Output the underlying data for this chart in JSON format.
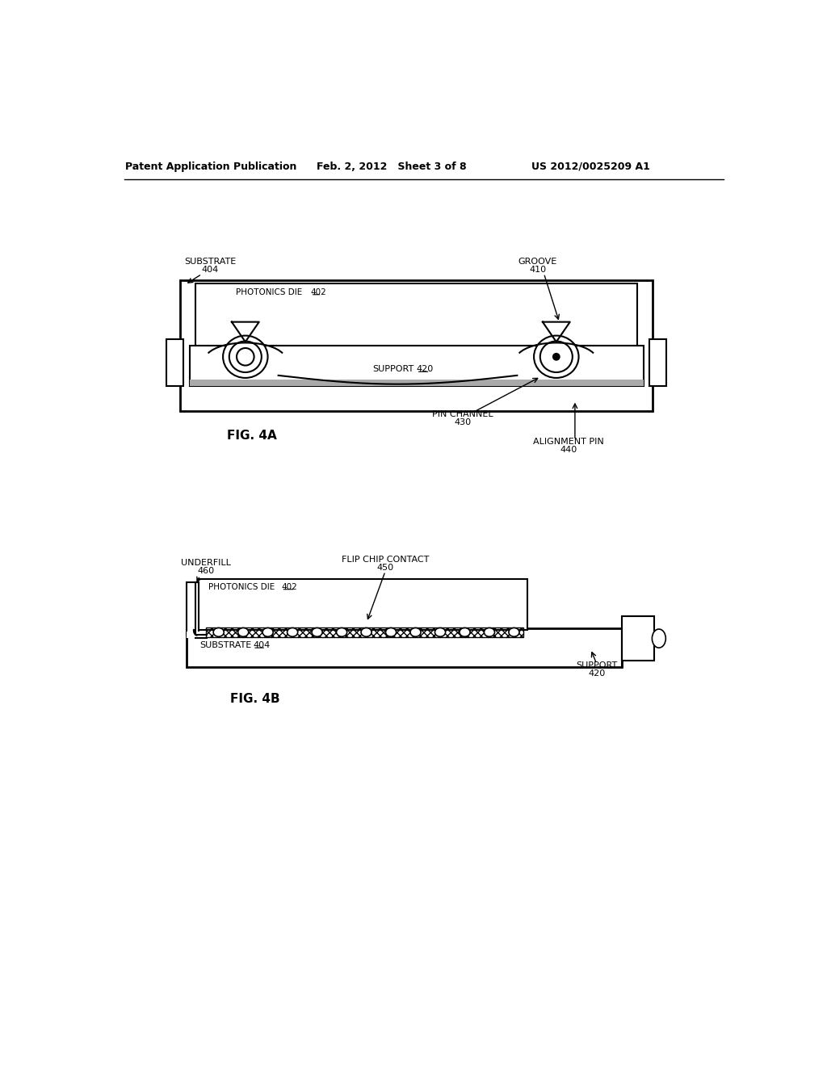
{
  "bg_color": "#ffffff",
  "header_text": "Patent Application Publication",
  "header_date": "Feb. 2, 2012   Sheet 3 of 8",
  "header_patent": "US 2012/0025209 A1",
  "fig4a_label": "FIG. 4A",
  "fig4b_label": "FIG. 4B"
}
